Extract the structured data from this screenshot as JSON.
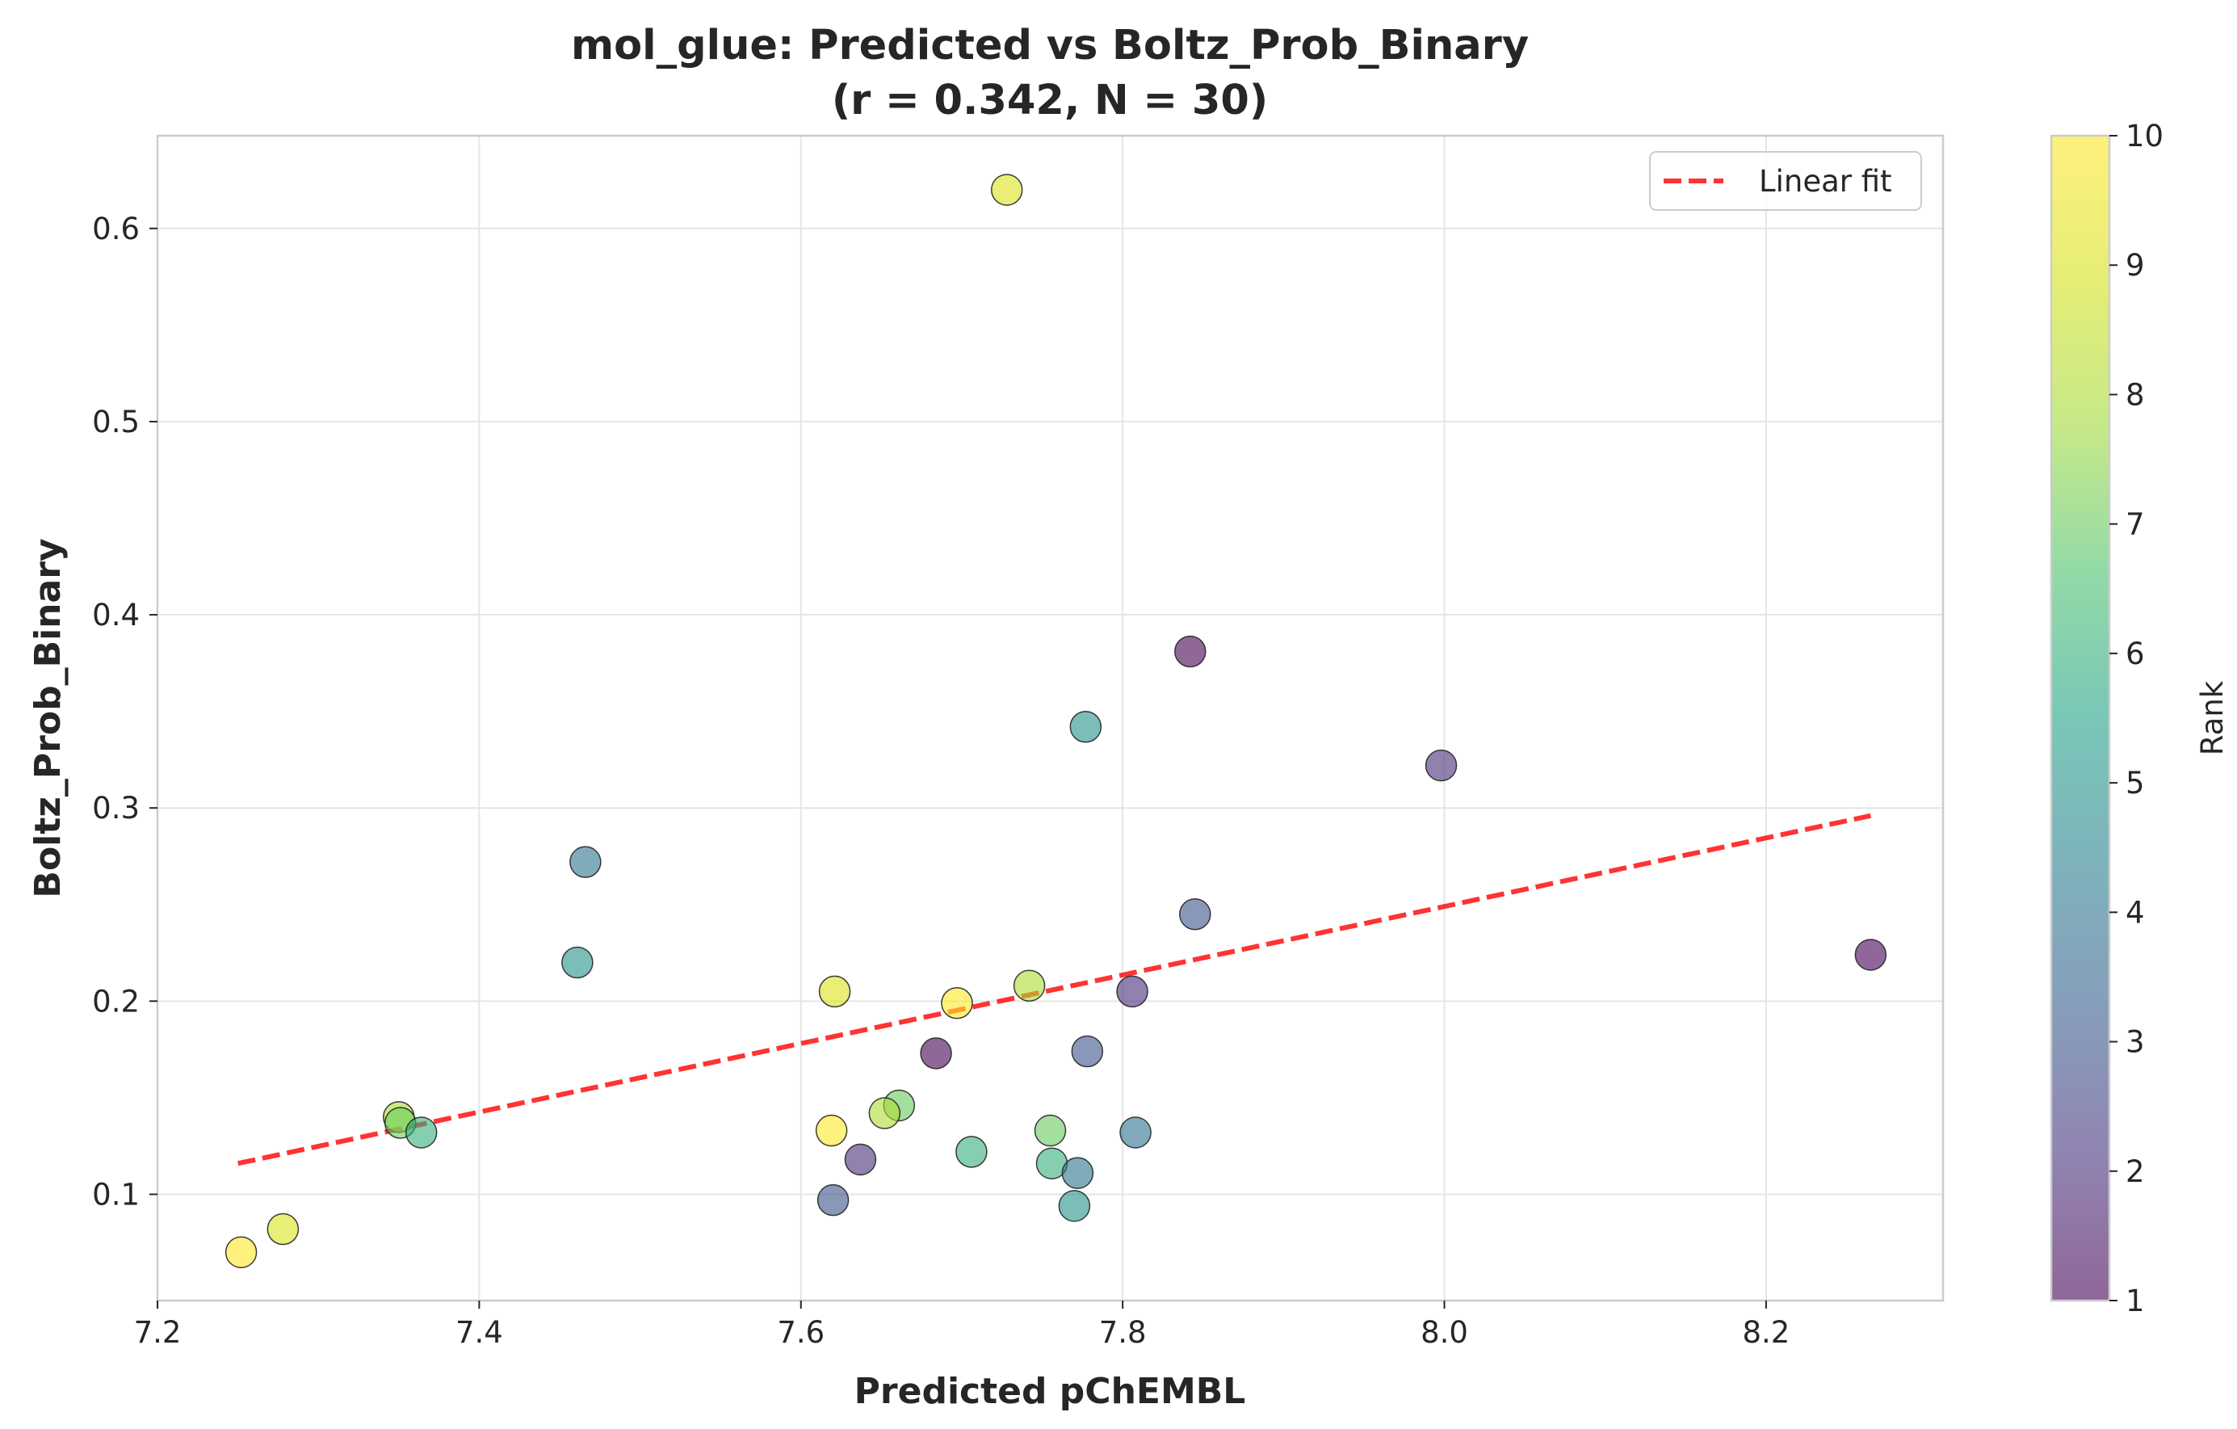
{
  "chart_data": {
    "type": "scatter",
    "title_line1": "mol_glue: Predicted vs Boltz_Prob_Binary",
    "title_line2": "(r = 0.342, N = 30)",
    "xlabel": "Predicted pChEMBL",
    "ylabel": "Boltz_Prob_Binary",
    "xlim": [
      7.2,
      8.31
    ],
    "ylim": [
      0.045,
      0.648
    ],
    "xticks": [
      7.2,
      7.4,
      7.6,
      7.8,
      8.0,
      8.2
    ],
    "xtick_labels": [
      "7.2",
      "7.4",
      "7.6",
      "7.8",
      "8.0",
      "8.2"
    ],
    "yticks": [
      0.1,
      0.2,
      0.3,
      0.4,
      0.5,
      0.6
    ],
    "ytick_labels": [
      "0.1",
      "0.2",
      "0.3",
      "0.4",
      "0.5",
      "0.6"
    ],
    "grid": true,
    "legend": {
      "position": "top-right",
      "entries": [
        "Linear fit"
      ]
    },
    "fit_line": {
      "x": [
        7.25,
        8.265
      ],
      "y": [
        0.116,
        0.296
      ],
      "color": "#ff0000"
    },
    "colorbar": {
      "label": "Rank",
      "range": [
        1,
        10
      ],
      "ticks": [
        1,
        2,
        3,
        4,
        5,
        6,
        7,
        8,
        9,
        10
      ],
      "tick_labels": [
        "1",
        "2",
        "3",
        "4",
        "5",
        "6",
        "7",
        "8",
        "9",
        "10"
      ],
      "colormap": "viridis"
    },
    "points": [
      {
        "x": 7.728,
        "y": 0.62,
        "rank": 9
      },
      {
        "x": 7.842,
        "y": 0.381,
        "rank": 1
      },
      {
        "x": 7.777,
        "y": 0.342,
        "rank": 5
      },
      {
        "x": 7.998,
        "y": 0.322,
        "rank": 2
      },
      {
        "x": 7.466,
        "y": 0.272,
        "rank": 4
      },
      {
        "x": 7.845,
        "y": 0.245,
        "rank": 3
      },
      {
        "x": 8.265,
        "y": 0.224,
        "rank": 1
      },
      {
        "x": 7.461,
        "y": 0.22,
        "rank": 5
      },
      {
        "x": 7.742,
        "y": 0.208,
        "rank": 8
      },
      {
        "x": 7.621,
        "y": 0.205,
        "rank": 9
      },
      {
        "x": 7.806,
        "y": 0.205,
        "rank": 2
      },
      {
        "x": 7.697,
        "y": 0.199,
        "rank": 10
      },
      {
        "x": 7.778,
        "y": 0.174,
        "rank": 3
      },
      {
        "x": 7.684,
        "y": 0.173,
        "rank": 1
      },
      {
        "x": 7.661,
        "y": 0.146,
        "rank": 7
      },
      {
        "x": 7.652,
        "y": 0.142,
        "rank": 8
      },
      {
        "x": 7.35,
        "y": 0.14,
        "rank": 8
      },
      {
        "x": 7.351,
        "y": 0.137,
        "rank": 7
      },
      {
        "x": 7.364,
        "y": 0.132,
        "rank": 6
      },
      {
        "x": 7.619,
        "y": 0.133,
        "rank": 10
      },
      {
        "x": 7.755,
        "y": 0.133,
        "rank": 7
      },
      {
        "x": 7.808,
        "y": 0.132,
        "rank": 4
      },
      {
        "x": 7.706,
        "y": 0.122,
        "rank": 6
      },
      {
        "x": 7.637,
        "y": 0.118,
        "rank": 2
      },
      {
        "x": 7.756,
        "y": 0.116,
        "rank": 6
      },
      {
        "x": 7.772,
        "y": 0.111,
        "rank": 4
      },
      {
        "x": 7.62,
        "y": 0.097,
        "rank": 3
      },
      {
        "x": 7.77,
        "y": 0.094,
        "rank": 5
      },
      {
        "x": 7.278,
        "y": 0.082,
        "rank": 9
      },
      {
        "x": 7.252,
        "y": 0.07,
        "rank": 10
      }
    ]
  }
}
